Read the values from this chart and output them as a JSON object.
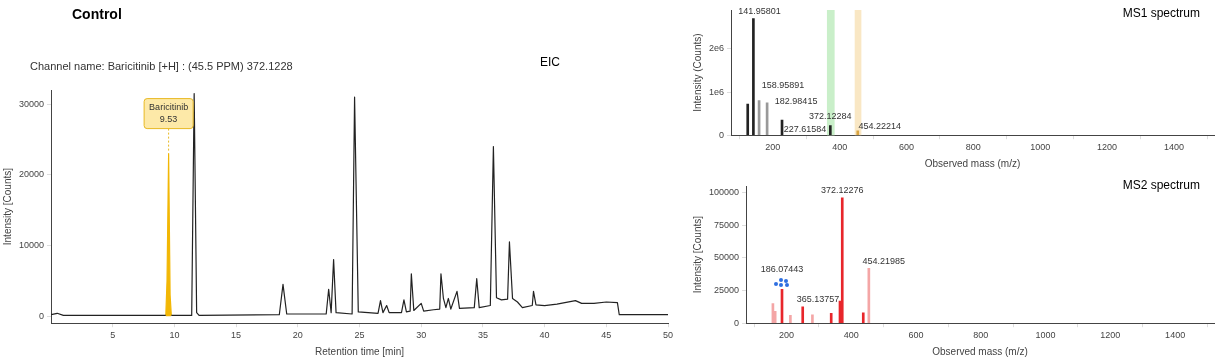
{
  "chart_data": [
    {
      "type": "line",
      "title": "Control",
      "subtitle": "Channel name: Baricitinib [+H] : (45.5 PPM) 372.1228",
      "xlabel": "Retention time [min]",
      "ylabel": "Intensity [Counts]",
      "xlim": [
        0,
        50
      ],
      "xticks": [
        5,
        10,
        15,
        20,
        25,
        30,
        35,
        40,
        45,
        50
      ],
      "ylim": [
        -1000,
        32000
      ],
      "yticks": [
        0,
        10000,
        20000,
        30000
      ],
      "grid": false,
      "marker": "none",
      "annotations": [
        "EIC",
        {
          "text": "Baricitinib\n9.53",
          "x": 9.53,
          "y": 23000
        }
      ],
      "series": [
        {
          "type": "area",
          "color": "#f2b705",
          "x": [
            9.3,
            9.4,
            9.53,
            9.65,
            9.75
          ],
          "values": [
            100,
            5000,
            23000,
            3000,
            100
          ]
        },
        {
          "color": "#222222",
          "x": [
            0,
            0.5,
            1,
            5,
            9.2,
            9.3,
            9.5,
            9.75,
            9.8,
            11.4,
            11.6,
            11.8,
            12,
            18.5,
            18.8,
            19.1,
            22.3,
            22.5,
            22.7,
            22.9,
            23.1,
            24.4,
            24.6,
            24.9,
            26.5,
            26.7,
            26.9,
            27.2,
            27.4,
            28.4,
            28.6,
            28.8,
            29.1,
            29.2,
            29.4,
            30,
            30.2,
            31,
            31.5,
            31.6,
            31.8,
            32,
            32.2,
            32.4,
            32.9,
            33.1,
            34.3,
            34.5,
            34.7,
            35.6,
            35.85,
            36.1,
            36.5,
            37,
            37.15,
            37.4,
            37.8,
            38.2,
            39,
            39.1,
            39.3,
            40,
            41,
            42.5,
            43,
            44,
            45,
            45.9,
            46.05,
            50
          ],
          "values": [
            200,
            400,
            100,
            100,
            100,
            100,
            null,
            100,
            100,
            100,
            31500,
            500,
            100,
            200,
            4500,
            300,
            300,
            3800,
            500,
            8000,
            500,
            300,
            31000,
            600,
            400,
            2200,
            500,
            1500,
            500,
            500,
            2300,
            600,
            700,
            6000,
            800,
            1800,
            700,
            900,
            1000,
            6000,
            2500,
            1200,
            2500,
            1000,
            3500,
            1100,
            1200,
            5300,
            1200,
            1500,
            24000,
            2600,
            2300,
            2400,
            10500,
            2500,
            2000,
            1200,
            1500,
            3500,
            1600,
            1500,
            1700,
            2200,
            1800,
            1800,
            2000,
            1900,
            200,
            200
          ]
        }
      ]
    },
    {
      "type": "bar",
      "title": "MS1 spectrum",
      "xlabel": "Observed mass (m/z)",
      "ylabel": "Intensity (Counts)",
      "xlim": [
        75,
        1520
      ],
      "xticks": [
        200,
        400,
        600,
        800,
        1000,
        1200,
        1400
      ],
      "ylim": [
        0,
        2900000
      ],
      "yticks": [
        0,
        {
          "value": 1000000,
          "label": "1e6"
        },
        {
          "value": 2000000,
          "label": "2e6"
        }
      ],
      "grid": false,
      "x": [
        125,
        141.958,
        158.959,
        182.984,
        227.616,
        372.123,
        454.222
      ],
      "values": [
        720000,
        2700000,
        800000,
        750000,
        350000,
        220000,
        100000
      ],
      "colors": [
        "#222222",
        "#222222",
        "#999999",
        "#999999",
        "#222222",
        "#222222",
        "#d9a441"
      ],
      "bands": [
        {
          "axis": "x",
          "from": 362,
          "to": 385,
          "color": "#c9efc9"
        },
        {
          "axis": "x",
          "from": 445,
          "to": 465,
          "color": "#f9e7c4"
        }
      ],
      "annotations": [
        {
          "text": "141.95801",
          "x": 141.958,
          "y": 2700000
        },
        {
          "text": "158.95891",
          "x": 158.959,
          "y": 800000
        },
        {
          "text": "182.98415",
          "x": 182.984,
          "y": 750000
        },
        {
          "text": "227.61584",
          "x": 227.616,
          "y": 350000
        },
        {
          "text": "372.12284",
          "x": 372.123,
          "y": 220000
        },
        {
          "text": "454.22214",
          "x": 454.222,
          "y": 100000
        }
      ]
    },
    {
      "type": "bar",
      "title": "MS2 spectrum",
      "xlabel": "Observed mass (m/z)",
      "ylabel": "Intensity [Counts]",
      "xlim": [
        75,
        1520
      ],
      "xticks": [
        200,
        400,
        600,
        800,
        1000,
        1200,
        1400
      ],
      "ylim": [
        0,
        105000
      ],
      "yticks": [
        0,
        25000,
        50000,
        75000,
        100000
      ],
      "grid": false,
      "x": [
        158,
        165,
        186.074,
        212,
        250,
        280,
        338,
        365.138,
        372.123,
        437,
        454.22
      ],
      "values": [
        15000,
        9000,
        26000,
        6000,
        12500,
        6500,
        7500,
        17000,
        96000,
        8000,
        42000
      ],
      "colors": [
        "#f4a6a6",
        "#f4a6a6",
        "#e8262b",
        "#f4a6a6",
        "#e8262b",
        "#f4a6a6",
        "#e8262b",
        "#e8262b",
        "#e8262b",
        "#e8262b",
        "#f4a6a6"
      ],
      "annotations": [
        {
          "text": "372.12276",
          "x": 372.123,
          "y": 96000
        },
        {
          "text": "454.21985",
          "x": 454.22,
          "y": 42000
        },
        {
          "text": "186.07443",
          "x": 186.074,
          "y": 26000
        },
        {
          "text": "365.13757",
          "x": 365.138,
          "y": 17000
        }
      ]
    }
  ]
}
